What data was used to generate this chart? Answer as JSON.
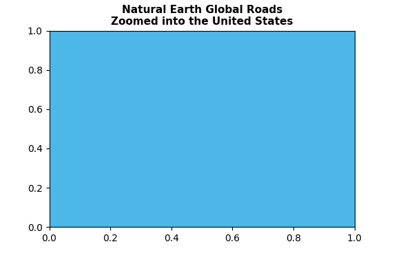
{
  "title_line1": "Natural Earth Global Roads",
  "title_line2": "Zoomed into the United States",
  "title_fontsize": 11,
  "background_color": "#ffffff",
  "us_fill_color": "#4db8e8",
  "us_edge_color": "#4db8e8",
  "road_color": "#9900cc",
  "road_linewidth": 0.5,
  "us_extent": [
    -125,
    -66.5,
    24,
    50
  ],
  "figsize": [
    5.72,
    3.71
  ],
  "dpi": 100
}
